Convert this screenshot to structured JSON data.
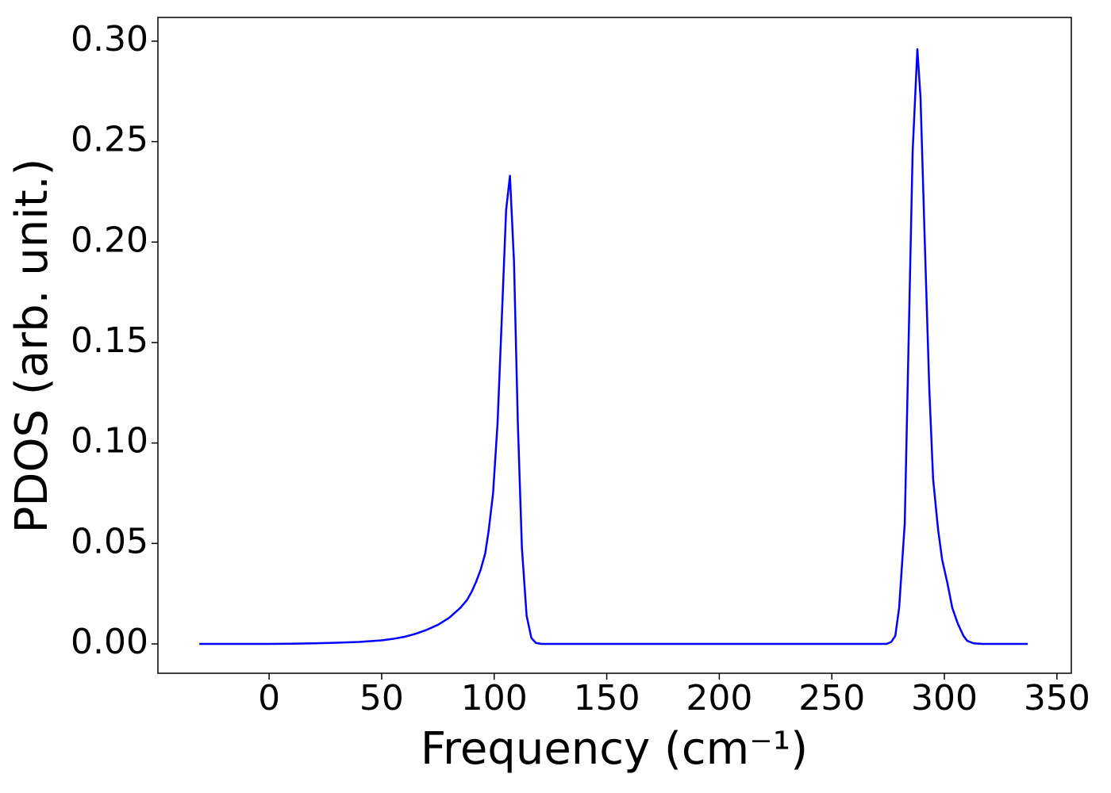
{
  "chart_data": {
    "type": "line",
    "x_label": "Frequency (cm⁻¹)",
    "y_label": "PDOS (arb. unit.)",
    "x": [
      -31,
      0,
      10,
      20,
      30,
      40,
      50,
      55,
      60,
      65,
      70,
      75,
      80,
      85,
      88,
      90,
      92,
      94,
      96,
      97.5,
      99.5,
      101.5,
      103.3,
      105.3,
      107,
      108.8,
      110.5,
      112.3,
      114.4,
      116.5,
      118.5,
      121,
      150,
      200,
      250,
      274.3,
      276.4,
      278.2,
      279.9,
      282.4,
      285.9,
      288,
      289.4,
      291.3,
      293.3,
      295,
      297.2,
      299,
      301.4,
      303.5,
      306,
      308.5,
      310.2,
      313,
      317,
      337
    ],
    "series": [
      {
        "name": "PDOS",
        "color": "#0000ff",
        "values": [
          0,
          0,
          0.0001,
          0.0003,
          0.0006,
          0.001,
          0.0018,
          0.0025,
          0.0035,
          0.005,
          0.007,
          0.0095,
          0.013,
          0.018,
          0.022,
          0.026,
          0.031,
          0.037,
          0.045,
          0.056,
          0.075,
          0.11,
          0.16,
          0.216,
          0.233,
          0.19,
          0.11,
          0.048,
          0.014,
          0.003,
          0.0005,
          0,
          0,
          0,
          0,
          0,
          0.001,
          0.004,
          0.018,
          0.06,
          0.245,
          0.296,
          0.272,
          0.2,
          0.127,
          0.082,
          0.057,
          0.042,
          0.03,
          0.018,
          0.01,
          0.004,
          0.0015,
          0.0003,
          0,
          0
        ]
      }
    ],
    "xlim": [
      -49.4,
      356.4
    ],
    "ylim": [
      -0.0146,
      0.3118
    ],
    "xticks": [
      0,
      50,
      100,
      150,
      200,
      250,
      300,
      350
    ],
    "yticks": [
      {
        "value": 0,
        "label": "0.00"
      },
      {
        "value": 0.05,
        "label": "0.05"
      },
      {
        "value": 0.1,
        "label": "0.10"
      },
      {
        "value": 0.15,
        "label": "0.15"
      },
      {
        "value": 0.2,
        "label": "0.20"
      },
      {
        "value": 0.25,
        "label": "0.25"
      },
      {
        "value": 0.3,
        "label": "0.30"
      }
    ],
    "grid": false
  }
}
